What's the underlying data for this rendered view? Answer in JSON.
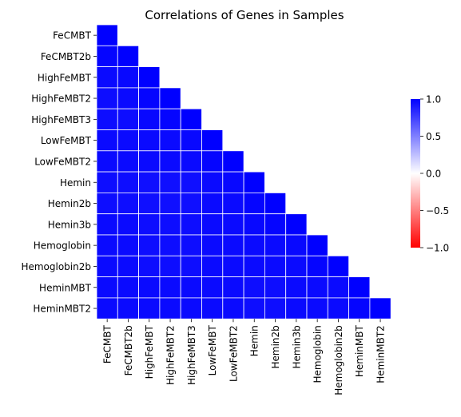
{
  "chart_data": {
    "type": "heatmap",
    "title": "Correlations of Genes in Samples",
    "xlabel": "",
    "ylabel": "",
    "labels": [
      "FeCMBT",
      "FeCMBT2b",
      "HighFeMBT",
      "HighFeMBT2",
      "HighFeMBT3",
      "LowFeMBT",
      "LowFeMBT2",
      "Hemin",
      "Hemin2b",
      "Hemin3b",
      "Hemoglobin",
      "Hemoglobin2b",
      "HeminMBT",
      "HeminMBT2"
    ],
    "mask": "upper-triangle",
    "values": [
      [
        1.0
      ],
      [
        0.98,
        1.0
      ],
      [
        0.96,
        0.97,
        1.0
      ],
      [
        0.95,
        0.96,
        0.98,
        1.0
      ],
      [
        0.95,
        0.95,
        0.97,
        0.98,
        1.0
      ],
      [
        0.96,
        0.96,
        0.96,
        0.96,
        0.97,
        1.0
      ],
      [
        0.96,
        0.96,
        0.96,
        0.96,
        0.96,
        0.98,
        1.0
      ],
      [
        0.95,
        0.95,
        0.94,
        0.94,
        0.94,
        0.96,
        0.97,
        1.0
      ],
      [
        0.95,
        0.95,
        0.94,
        0.94,
        0.94,
        0.96,
        0.96,
        0.98,
        1.0
      ],
      [
        0.96,
        0.96,
        0.95,
        0.95,
        0.95,
        0.96,
        0.96,
        0.97,
        0.98,
        1.0
      ],
      [
        0.96,
        0.96,
        0.95,
        0.95,
        0.95,
        0.96,
        0.96,
        0.96,
        0.96,
        0.97,
        1.0
      ],
      [
        0.96,
        0.96,
        0.95,
        0.95,
        0.95,
        0.96,
        0.96,
        0.96,
        0.96,
        0.96,
        0.98,
        1.0
      ],
      [
        0.96,
        0.96,
        0.96,
        0.96,
        0.96,
        0.96,
        0.96,
        0.95,
        0.95,
        0.96,
        0.96,
        0.96,
        1.0
      ],
      [
        0.96,
        0.96,
        0.96,
        0.96,
        0.96,
        0.96,
        0.96,
        0.95,
        0.95,
        0.96,
        0.96,
        0.96,
        0.98,
        1.0
      ]
    ],
    "colorbar": {
      "vmin": -1.0,
      "vmax": 1.0,
      "ticks": [
        -1.0,
        -0.5,
        0.0,
        0.5,
        1.0
      ],
      "tick_labels": [
        "−1.0",
        "−0.5",
        "0.0",
        "0.5",
        "1.0"
      ],
      "colors": [
        "#ff0000",
        "#ffffff",
        "#0000ff"
      ]
    },
    "cell_line_color": "#ffffff"
  }
}
